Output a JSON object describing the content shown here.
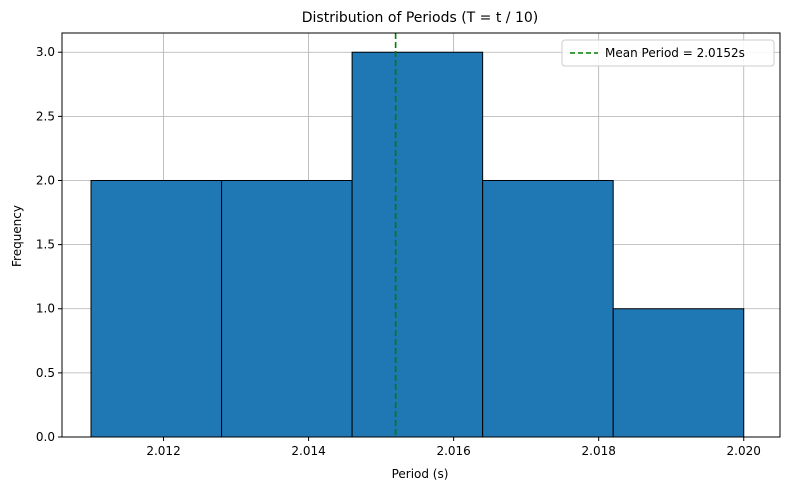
{
  "chart_data": {
    "type": "histogram",
    "title": "Distribution of Periods (T = t / 10)",
    "xlabel": "Period (s)",
    "ylabel": "Frequency",
    "bins": [
      {
        "start": 2.011,
        "end": 2.0128,
        "count": 2
      },
      {
        "start": 2.0128,
        "end": 2.0146,
        "count": 2
      },
      {
        "start": 2.0146,
        "end": 2.0164,
        "count": 3
      },
      {
        "start": 2.0164,
        "end": 2.0182,
        "count": 2
      },
      {
        "start": 2.0182,
        "end": 2.02,
        "count": 1
      }
    ],
    "xlim": [
      2.0106,
      2.0205
    ],
    "ylim": [
      0,
      3.15
    ],
    "xticks": [
      2.012,
      2.014,
      2.016,
      2.018,
      2.02
    ],
    "xtick_labels": [
      "2.012",
      "2.014",
      "2.016",
      "2.018",
      "2.020"
    ],
    "yticks": [
      0.0,
      0.5,
      1.0,
      1.5,
      2.0,
      2.5,
      3.0
    ],
    "ytick_labels": [
      "0.0",
      "0.5",
      "1.0",
      "1.5",
      "2.0",
      "2.5",
      "3.0"
    ],
    "grid": true,
    "bar_color": "#1f77b4",
    "bar_edge_color": "#000000",
    "mean_line": {
      "x": 2.0152,
      "label": "Mean Period = 2.0152s",
      "color": "#008000",
      "style": "dashed"
    },
    "legend_position": "top-right"
  }
}
